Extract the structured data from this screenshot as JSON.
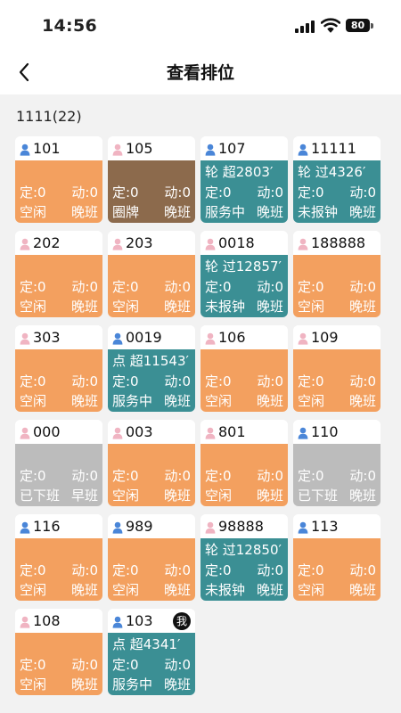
{
  "status": {
    "time": "14:56",
    "battery": "80"
  },
  "nav": {
    "title": "查看排位"
  },
  "group": {
    "title": "1111(22)"
  },
  "colors": {
    "orange": "#f3a05f",
    "brown": "#8c6a4c",
    "teal": "#3b8f94",
    "gray": "#bcbcbc",
    "male_icon": "#4a86d8",
    "female_icon": "#f0b4c2"
  },
  "cards": [
    {
      "id": "101",
      "gender": "male",
      "color": "orange",
      "top": "",
      "ding": "定:0",
      "dong": "动:0",
      "state": "空闲",
      "shift": "晚班"
    },
    {
      "id": "105",
      "gender": "female",
      "color": "brown",
      "top": "",
      "ding": "定:0",
      "dong": "动:0",
      "state": "圈牌",
      "shift": "晚班"
    },
    {
      "id": "107",
      "gender": "male",
      "color": "teal",
      "top": "轮  超2803′",
      "ding": "定:0",
      "dong": "动:0",
      "state": "服务中",
      "shift": "晚班"
    },
    {
      "id": "11111",
      "gender": "male",
      "color": "teal",
      "top": "轮  过4326′",
      "ding": "定:0",
      "dong": "动:0",
      "state": "未报钟",
      "shift": "晚班"
    },
    {
      "id": "202",
      "gender": "female",
      "color": "orange",
      "top": "",
      "ding": "定:0",
      "dong": "动:0",
      "state": "空闲",
      "shift": "晚班"
    },
    {
      "id": "203",
      "gender": "female",
      "color": "orange",
      "top": "",
      "ding": "定:0",
      "dong": "动:0",
      "state": "空闲",
      "shift": "晚班"
    },
    {
      "id": "0018",
      "gender": "female",
      "color": "teal",
      "top": "轮 过12857′",
      "ding": "定:0",
      "dong": "动:0",
      "state": "未报钟",
      "shift": "晚班"
    },
    {
      "id": "188888",
      "gender": "female",
      "color": "orange",
      "top": "",
      "ding": "定:0",
      "dong": "动:0",
      "state": "空闲",
      "shift": "晚班"
    },
    {
      "id": "303",
      "gender": "female",
      "color": "orange",
      "top": "",
      "ding": "定:0",
      "dong": "动:0",
      "state": "空闲",
      "shift": "晚班"
    },
    {
      "id": "0019",
      "gender": "male",
      "color": "teal",
      "top": "点  超11543′",
      "ding": "定:0",
      "dong": "动:0",
      "state": "服务中",
      "shift": "晚班"
    },
    {
      "id": "106",
      "gender": "female",
      "color": "orange",
      "top": "",
      "ding": "定:0",
      "dong": "动:0",
      "state": "空闲",
      "shift": "晚班"
    },
    {
      "id": "109",
      "gender": "female",
      "color": "orange",
      "top": "",
      "ding": "定:0",
      "dong": "动:0",
      "state": "空闲",
      "shift": "晚班"
    },
    {
      "id": "000",
      "gender": "female",
      "color": "gray",
      "top": "",
      "ding": "定:0",
      "dong": "动:0",
      "state": "已下班",
      "shift": "早班"
    },
    {
      "id": "003",
      "gender": "female",
      "color": "orange",
      "top": "",
      "ding": "定:0",
      "dong": "动:0",
      "state": "空闲",
      "shift": "晚班"
    },
    {
      "id": "801",
      "gender": "female",
      "color": "orange",
      "top": "",
      "ding": "定:0",
      "dong": "动:0",
      "state": "空闲",
      "shift": "晚班"
    },
    {
      "id": "110",
      "gender": "male",
      "color": "gray",
      "top": "",
      "ding": "定:0",
      "dong": "动:0",
      "state": "已下班",
      "shift": "晚班"
    },
    {
      "id": "116",
      "gender": "male",
      "color": "orange",
      "top": "",
      "ding": "定:0",
      "dong": "动:0",
      "state": "空闲",
      "shift": "晚班"
    },
    {
      "id": "989",
      "gender": "male",
      "color": "orange",
      "top": "",
      "ding": "定:0",
      "dong": "动:0",
      "state": "空闲",
      "shift": "晚班"
    },
    {
      "id": "98888",
      "gender": "female",
      "color": "teal",
      "top": "轮 过12850′",
      "ding": "定:0",
      "dong": "动:0",
      "state": "未报钟",
      "shift": "晚班"
    },
    {
      "id": "113",
      "gender": "male",
      "color": "orange",
      "top": "",
      "ding": "定:0",
      "dong": "动:0",
      "state": "空闲",
      "shift": "晚班"
    },
    {
      "id": "108",
      "gender": "female",
      "color": "orange",
      "top": "",
      "ding": "定:0",
      "dong": "动:0",
      "state": "空闲",
      "shift": "晚班"
    },
    {
      "id": "103",
      "gender": "male",
      "color": "teal",
      "top": "点   超4341′",
      "ding": "定:0",
      "dong": "动:0",
      "state": "服务中",
      "shift": "晚班",
      "badge": "我"
    }
  ]
}
